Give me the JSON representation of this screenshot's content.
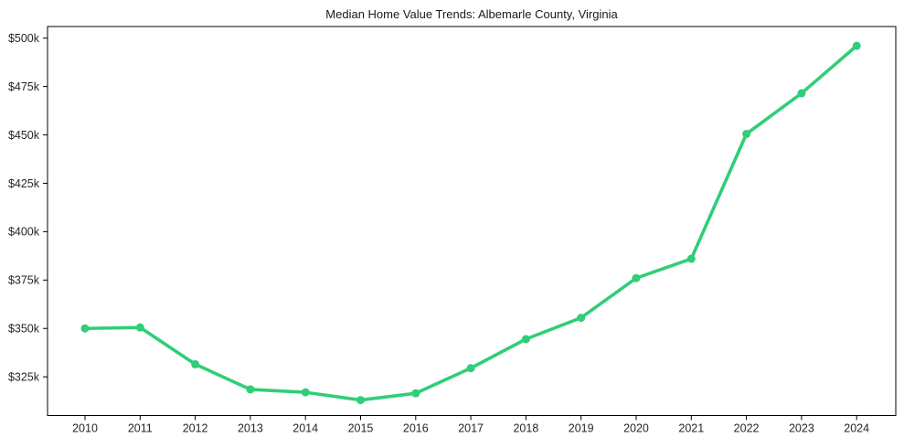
{
  "chart_data": {
    "type": "line",
    "title": "Median Home Value Trends: Albemarle County, Virginia",
    "xlabel": "",
    "ylabel": "",
    "x": [
      2010,
      2011,
      2012,
      2013,
      2014,
      2015,
      2016,
      2017,
      2018,
      2019,
      2020,
      2021,
      2022,
      2023,
      2024
    ],
    "series": [
      {
        "name": "Median home value",
        "color": "#30ce79",
        "marker": "circle",
        "values": [
          350000,
          350500,
          331500,
          318500,
          317000,
          313000,
          316500,
          329500,
          344500,
          355500,
          376000,
          386000,
          450500,
          471500,
          496000
        ]
      }
    ],
    "xticks": {
      "values": [
        2010,
        2011,
        2012,
        2013,
        2014,
        2015,
        2016,
        2017,
        2018,
        2019,
        2020,
        2021,
        2022,
        2023,
        2024
      ],
      "labels": [
        "2010",
        "2011",
        "2012",
        "2013",
        "2014",
        "2015",
        "2016",
        "2017",
        "2018",
        "2019",
        "2020",
        "2021",
        "2022",
        "2023",
        "2024"
      ]
    },
    "yticks": {
      "values": [
        325000,
        350000,
        375000,
        400000,
        425000,
        450000,
        475000,
        500000
      ],
      "labels": [
        "$325k",
        "$350k",
        "$375k",
        "$400k",
        "$425k",
        "$450k",
        "$475k",
        "$500k"
      ]
    },
    "xlim": [
      2009.32,
      2024.71
    ],
    "ylim": [
      305000,
      506000
    ],
    "grid": false,
    "legend": false,
    "background": "#ffffff",
    "axis_color": "#000000",
    "tick_label_color": "#262626",
    "title_color": "#1a1a1a"
  }
}
